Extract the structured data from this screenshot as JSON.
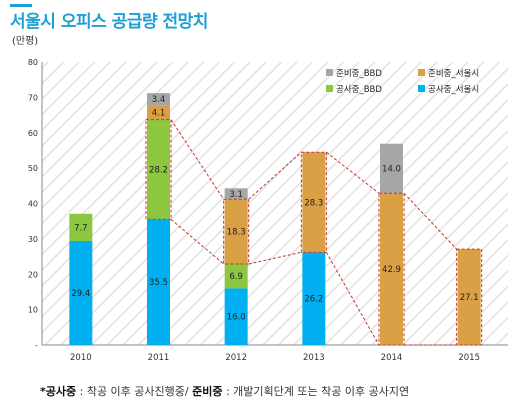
{
  "title": "서울시 오피스 공급량 전망치",
  "footnote": {
    "term1": "*공사중",
    "desc1": " : 착공 이후 공사진행중/ ",
    "term2": "준비중",
    "desc2": " : 개발기획단계 또는 착공 이후 공사지연"
  },
  "colors": {
    "공사중_서울시": "#00b0f0",
    "공사중_BBD": "#8dc63f",
    "준비중_서울시": "#d9a045",
    "준비중_BBD": "#a6a6a6",
    "connector": "#c0392b",
    "hatch": "#e2e2e2"
  },
  "chart_data": {
    "type": "bar",
    "stacked": true,
    "categories": [
      "2010",
      "2011",
      "2012",
      "2013",
      "2014",
      "2015"
    ],
    "ylabel": "(만평)",
    "ylim": [
      0,
      80
    ],
    "yticks": [
      "-",
      "10",
      "20",
      "30",
      "40",
      "50",
      "60",
      "70",
      "80"
    ],
    "legend_position": "top-right",
    "series": [
      {
        "name": "공사중_서울시",
        "values": [
          29.4,
          35.5,
          16.0,
          26.2,
          null,
          null
        ],
        "labels": [
          "29.4",
          "35.5",
          "16.0",
          "26.2",
          "",
          ""
        ]
      },
      {
        "name": "공사중_BBD",
        "values": [
          7.7,
          28.2,
          6.9,
          null,
          null,
          null
        ],
        "labels": [
          "7.7",
          "28.2",
          "6.9",
          "",
          "",
          ""
        ]
      },
      {
        "name": "준비중_서울시",
        "values": [
          null,
          4.1,
          18.3,
          28.3,
          42.9,
          27.1
        ],
        "labels": [
          "",
          "4.1",
          "18.3",
          "28.3",
          "42.9",
          "27.1"
        ]
      },
      {
        "name": "준비중_BBD",
        "values": [
          null,
          3.4,
          3.1,
          null,
          14.0,
          null
        ],
        "labels": [
          "",
          "3.4",
          "3.1",
          "",
          "14.0",
          ""
        ]
      }
    ],
    "legend": [
      "준비중_BBD",
      "준비중_서울시",
      "공사중_BBD",
      "공사중_서울시"
    ]
  }
}
